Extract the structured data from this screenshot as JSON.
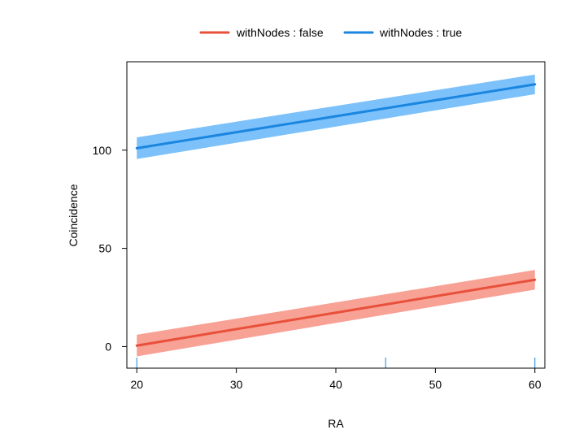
{
  "chart_data": {
    "type": "line",
    "title": "",
    "xlabel": "RA",
    "ylabel": "Coincidence",
    "xlim": [
      19,
      61
    ],
    "ylim": [
      -11,
      145
    ],
    "x_ticks": [
      20,
      30,
      40,
      50,
      60
    ],
    "y_ticks": [
      0,
      50,
      100
    ],
    "grid": false,
    "legend_position": "top",
    "rug_x": [
      20,
      45,
      60
    ],
    "series": [
      {
        "name": "withNodes : false",
        "color": "#E8503A",
        "band_color": "#F8A195",
        "x": [
          20,
          60
        ],
        "y": [
          0.5,
          34
        ],
        "lower": [
          -5,
          29
        ],
        "upper": [
          6,
          39
        ]
      },
      {
        "name": "withNodes : true",
        "color": "#1A86E0",
        "band_color": "#7DC1FA",
        "x": [
          20,
          60
        ],
        "y": [
          101,
          133.5
        ],
        "lower": [
          95.5,
          128.5
        ],
        "upper": [
          106.5,
          138.5
        ]
      }
    ]
  }
}
